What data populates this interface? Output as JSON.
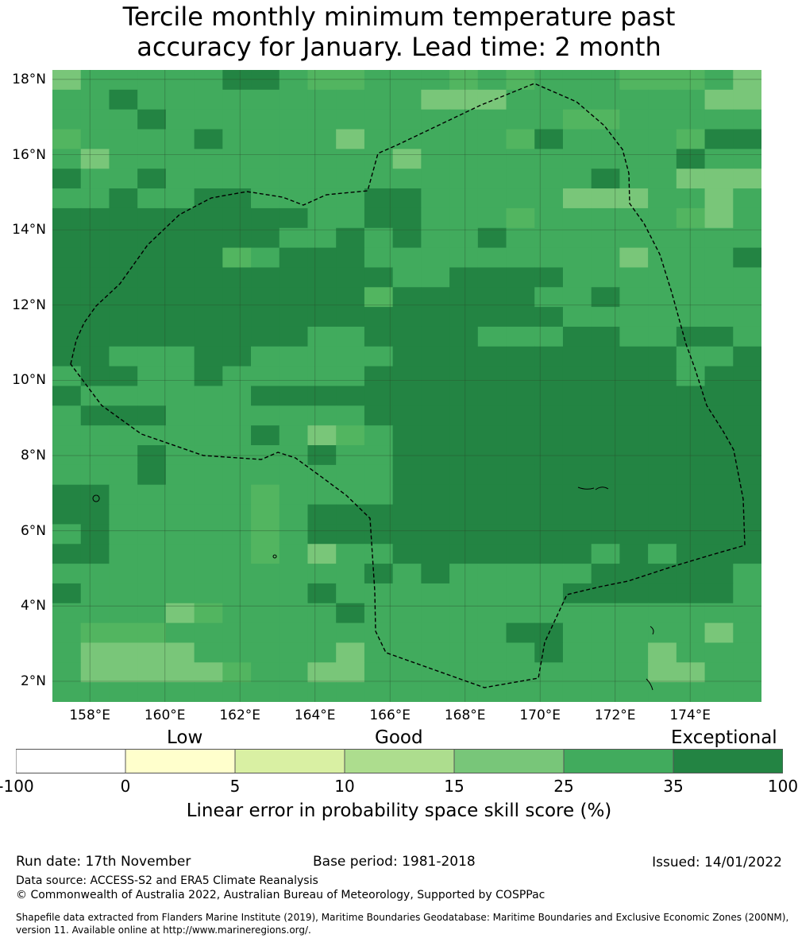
{
  "title_line1": "Tercile monthly minimum temperature past",
  "title_line2": "accuracy for January. Lead time: 2 month",
  "map": {
    "lat_labels": [
      "18°N",
      "16°N",
      "14°N",
      "12°N",
      "10°N",
      "8°N",
      "6°N",
      "4°N",
      "2°N"
    ],
    "lon_labels": [
      "158°E",
      "160°E",
      "162°E",
      "164°E",
      "166°E",
      "168°E",
      "170°E",
      "172°E",
      "174°E"
    ],
    "lat_values": [
      18,
      16,
      14,
      12,
      10,
      8,
      6,
      4,
      2
    ],
    "lon_values": [
      158,
      160,
      162,
      164,
      166,
      168,
      170,
      172,
      174
    ],
    "extent": {
      "lon_min": 157.0,
      "lon_max": 175.9,
      "lat_min": 1.45,
      "lat_max": 18.25
    },
    "grid_cell_deg": 0.833,
    "grid_levels": [
      "ABBBBBDDBCCBBBCBCBBBCCCBA",
      "BBDBBBBBBBBBBAAABBBBBBBAA",
      "BBBDBBBBBBBBBBBBBBCCBBBBB",
      "CBBBBDBBBBABBBBBCDBBBBCDD",
      "BABBBBBBBBBBABBBBBBBBBDBB",
      "DBBDBBBBBBBBBBBBBBBDBBAAA",
      "BBDBBDDBBBBDDBBBBBAAABBAB",
      "DDDDDDDDDBBDDBBBCBBBBBCAB",
      "DDDDDDDDBBDBDBBDBBBBBBBBB",
      "DDDDDDCBDDDBBBBBBBBBABBBD",
      "DDDDDDDDDDDDBBDDDDBBBBBBB",
      "DDDDDDDDDDDCDDDDDBBDBBBBB",
      "DDDDDDDDDDDDDDDDDDBBBBBBB",
      "DDDDDDDDDBBDDDDBBBDDBBDDB",
      "DDBBBDDBBBBBDDDDDDDDDDBBD",
      "BDDBBDBBBBBDDDDDDDDDDDBDD",
      "DBBBBBBDDDDDDDDDDDDDDDDDD",
      "BDDDBBBBBBBDDDDDDDDDDDDDD",
      "BBBBBBBDBACBDDDDDDDDDDDDD",
      "BBBDBBBBBDBBDDDDDDDDDDDDD",
      "BBBDBBBBBBBBDDDDDDDDDDDDD",
      "DDBBBBBCBBBBDDDDDDDDDDDDD",
      "DDBBBBBCBDDDDDDDDDDDDDDDD",
      "BDBBBBBCBDDDDDDDDDDDDDDDD",
      "DDBBBBBCBABBDDDDDDDBDBDDD",
      "BBBBBBBBBBBDBDBBBBBDDDDDB",
      "DBBBBBBBBDBBBBBBBBDDDDDDB",
      "BBBBACBBBBDBBBBBBBBBBBBBB",
      "BCCCBBBBBBBBBBBBDDBBBBBAB",
      "BAAAABBBBBABBBBBBDBBBABBB",
      "BAAAAACBBAABBBBBBBBBBAABB",
      "BBBBBBBBBBBBBBBBBBBBBBBBB"
    ],
    "palette": {
      "A": "#79c679",
      "B": "#41ab5d",
      "C": "#52b560",
      "D": "#238443"
    },
    "eez_boundary_color": "#000000",
    "gridline_color": "#2b4a2b"
  },
  "colorbar": {
    "categories": [
      {
        "label": "Low"
      },
      {
        "label": "Good"
      },
      {
        "label": "Exceptional"
      }
    ],
    "ticks": [
      "-100",
      "0",
      "5",
      "10",
      "15",
      "25",
      "35",
      "100"
    ],
    "colors": [
      "#ffffff",
      "#ffffcc",
      "#d9f0a3",
      "#addd8e",
      "#78c679",
      "#41ab5d",
      "#238443"
    ],
    "label": "Linear error in probability space skill score (%)"
  },
  "footer": {
    "run_date": "Run date: 17th November",
    "base_period": "Base period: 1981-2018",
    "issued": "Issued: 14/01/2022",
    "data_source": "Data source: ACCESS-S2 and ERA5 Climate Reanalysis",
    "copyright": "© Commonwealth of Australia 2022, Australian Bureau of Meteorology, Supported by COSPPac",
    "shapefile_line1": "Shapefile data extracted from Flanders Marine Institute (2019), Maritime Boundaries Geodatabase: Maritime Boundaries and Exclusive Economic Zones (200NM),",
    "shapefile_line2": "version 11. Available online at http://www.marineregions.org/."
  }
}
